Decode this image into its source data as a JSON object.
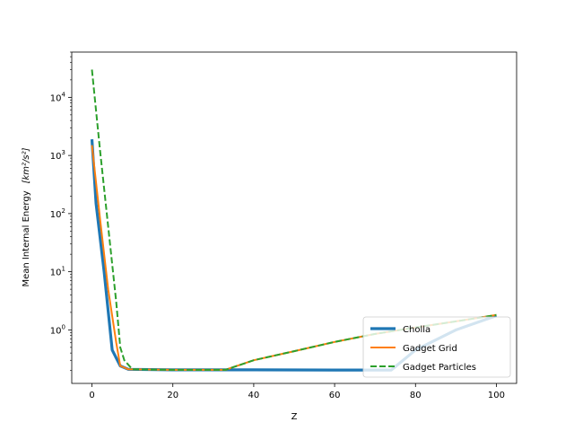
{
  "chart_data": {
    "type": "line",
    "title": "",
    "xlabel": "Z",
    "ylabel_main": "Mean Internal Energy",
    "ylabel_unit": "[km²/s²]",
    "xlim": [
      -5,
      105
    ],
    "ylim": [
      0.12,
      60000
    ],
    "yscale": "log",
    "x_ticks": [
      0,
      20,
      40,
      60,
      80,
      100
    ],
    "x_tick_labels": [
      "0",
      "20",
      "40",
      "60",
      "80",
      "100"
    ],
    "y_ticks": [
      1,
      10,
      100,
      1000,
      10000
    ],
    "y_tick_labels": [
      {
        "base": "10",
        "exp": "0"
      },
      {
        "base": "10",
        "exp": "1"
      },
      {
        "base": "10",
        "exp": "2"
      },
      {
        "base": "10",
        "exp": "3"
      },
      {
        "base": "10",
        "exp": "4"
      }
    ],
    "legend_position": "lower-right",
    "series": [
      {
        "name": "Cholla",
        "color": "#1f77b4",
        "style": "solid",
        "x": [
          0,
          1,
          3,
          5,
          7,
          9,
          20,
          33,
          40,
          60,
          74,
          80,
          90,
          100
        ],
        "y": [
          1900,
          150,
          10,
          0.45,
          0.24,
          0.21,
          0.205,
          0.205,
          0.205,
          0.204,
          0.204,
          0.45,
          1.0,
          1.75
        ]
      },
      {
        "name": "Gadget Grid",
        "color": "#ff7f0e",
        "style": "solid",
        "x": [
          0,
          2,
          4,
          6,
          7,
          9,
          20,
          33,
          40,
          50,
          60,
          70,
          80,
          90,
          100
        ],
        "y": [
          1500,
          80,
          5,
          0.6,
          0.24,
          0.21,
          0.205,
          0.205,
          0.3,
          0.43,
          0.62,
          0.85,
          1.1,
          1.4,
          1.8
        ]
      },
      {
        "name": "Gadget Particles",
        "color": "#2ca02c",
        "style": "dashed",
        "x": [
          0,
          2,
          4,
          6,
          7,
          8,
          10,
          20,
          33,
          40,
          50,
          60,
          70,
          80,
          90,
          100
        ],
        "y": [
          30000,
          1200,
          60,
          3,
          0.5,
          0.3,
          0.21,
          0.205,
          0.205,
          0.3,
          0.43,
          0.62,
          0.85,
          1.1,
          1.4,
          1.8
        ]
      }
    ]
  }
}
